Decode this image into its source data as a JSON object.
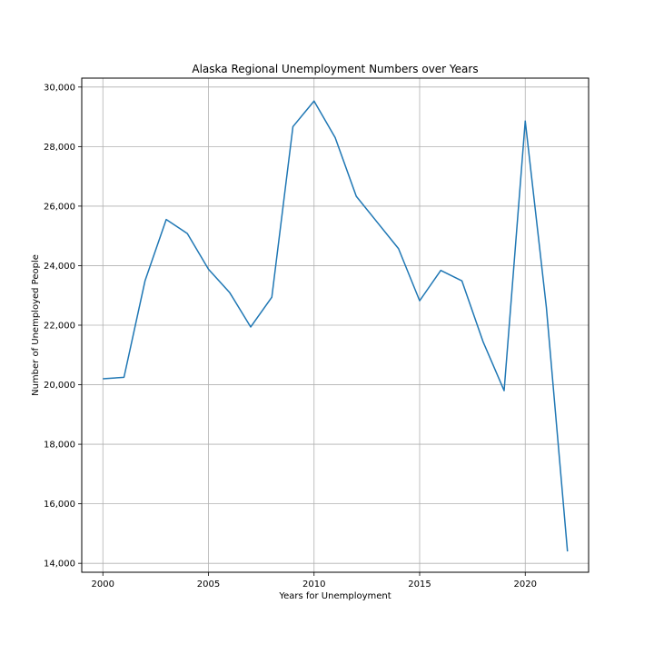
{
  "chart_data": {
    "type": "line",
    "title": "Alaska Regional Unemployment Numbers over Years",
    "xlabel": "Years for Unemployment",
    "ylabel": "Number of Unemployed People",
    "xlim": [
      1999,
      2023
    ],
    "ylim": [
      13700,
      30300
    ],
    "x_ticks": [
      2000,
      2005,
      2010,
      2015,
      2020
    ],
    "y_ticks": [
      14000,
      16000,
      18000,
      20000,
      22000,
      24000,
      26000,
      28000,
      30000
    ],
    "y_tick_labels": [
      "14,000",
      "16,000",
      "18,000",
      "20,000",
      "22,000",
      "24,000",
      "26,000",
      "28,000",
      "30,000"
    ],
    "grid": true,
    "line_color": "#1f77b4",
    "series": [
      {
        "x": [
          2000,
          2001,
          2002,
          2003,
          2004,
          2005,
          2006,
          2007,
          2008,
          2009,
          2010,
          2011,
          2012,
          2013,
          2014,
          2015,
          2016,
          2017,
          2018,
          2019,
          2020,
          2021,
          2022
        ],
        "values": [
          20200,
          20250,
          23500,
          25550,
          25080,
          23880,
          23100,
          21940,
          22940,
          28670,
          29530,
          28300,
          26330,
          25450,
          24570,
          22820,
          23840,
          23490,
          21450,
          19800,
          28860,
          22600,
          14400
        ]
      }
    ]
  }
}
